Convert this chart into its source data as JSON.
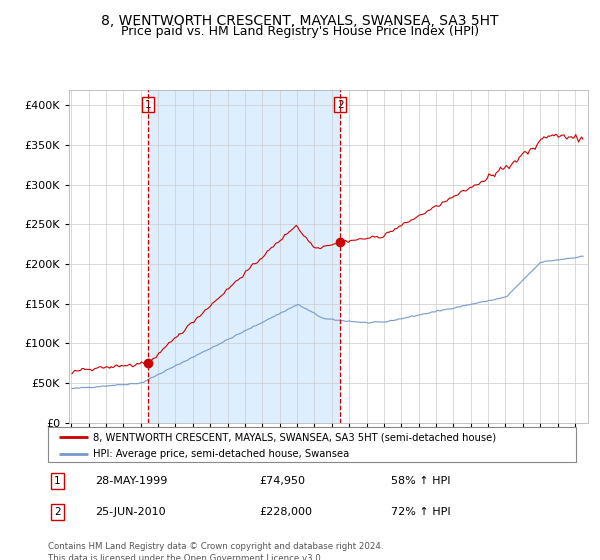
{
  "title": "8, WENTWORTH CRESCENT, MAYALS, SWANSEA, SA3 5HT",
  "subtitle": "Price paid vs. HM Land Registry's House Price Index (HPI)",
  "title_fontsize": 10,
  "subtitle_fontsize": 9,
  "ylim": [
    0,
    420000
  ],
  "yticks": [
    0,
    50000,
    100000,
    150000,
    200000,
    250000,
    300000,
    350000,
    400000
  ],
  "line_red_color": "#cc0000",
  "line_blue_color": "#7799cc",
  "background_color": "#ffffff",
  "panel_bg_color": "#ddeeff",
  "grid_color": "#cccccc",
  "purchase1_date": 1999.41,
  "purchase1_value": 74950,
  "purchase2_date": 2010.48,
  "purchase2_value": 228000,
  "legend_red_label": "8, WENTWORTH CRESCENT, MAYALS, SWANSEA, SA3 5HT (semi-detached house)",
  "legend_blue_label": "HPI: Average price, semi-detached house, Swansea",
  "annotation1_date": "28-MAY-1999",
  "annotation1_price": "£74,950",
  "annotation1_hpi": "58% ↑ HPI",
  "annotation2_date": "25-JUN-2010",
  "annotation2_price": "£228,000",
  "annotation2_hpi": "72% ↑ HPI",
  "footer": "Contains HM Land Registry data © Crown copyright and database right 2024.\nThis data is licensed under the Open Government Licence v3.0."
}
